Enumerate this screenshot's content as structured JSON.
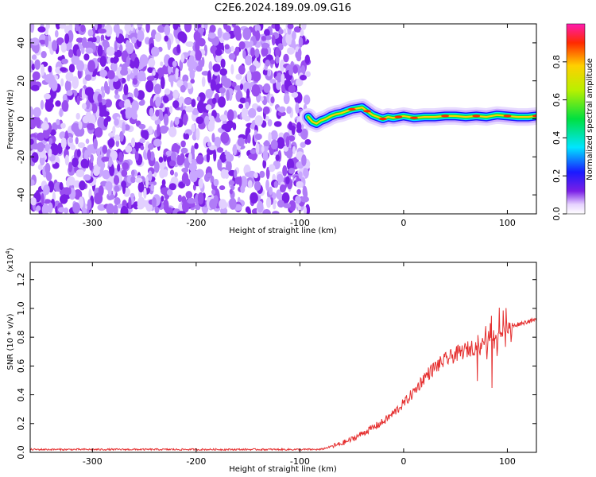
{
  "title": "C2E6.2024.189.09.09.G16",
  "colors": {
    "snr_line": "#e53030",
    "noise": "#7a1fe6",
    "axis": "#000000"
  },
  "chart_data": [
    {
      "type": "heatmap",
      "name": "spectrogram",
      "xlabel": "Height of straight line (km)",
      "ylabel": "Frequency (Hz)",
      "xlim": [
        -360,
        128
      ],
      "ylim": [
        -50,
        50
      ],
      "xticks": [
        "-300",
        "-200",
        "-100",
        "0",
        "100"
      ],
      "yticks": [
        "-40",
        "-20",
        "0",
        "20",
        "40"
      ],
      "noise_region_x": [
        -360,
        -92
      ],
      "signal_track": {
        "x": [
          -92,
          -88,
          -84,
          -80,
          -75,
          -70,
          -65,
          -60,
          -55,
          -50,
          -45,
          -40,
          -35,
          -30,
          -25,
          -20,
          -15,
          -10,
          -5,
          0,
          5,
          10,
          20,
          30,
          40,
          50,
          60,
          70,
          80,
          90,
          100,
          110,
          120,
          128
        ],
        "y": [
          1,
          -1.5,
          -2.5,
          -1,
          0,
          1.5,
          2.5,
          3,
          4,
          5,
          5.5,
          6,
          4,
          2,
          1,
          0,
          1,
          0.5,
          1,
          1.5,
          1,
          0.5,
          1,
          1,
          1.5,
          1.5,
          1,
          1.5,
          1,
          2,
          1.5,
          1,
          1,
          1.5
        ]
      },
      "colorbar": {
        "label": "Normalized spectral amplitude",
        "ticks": [
          "0.0",
          "0.2",
          "0.4",
          "0.6",
          "0.8"
        ],
        "range": [
          0,
          1
        ]
      }
    },
    {
      "type": "line",
      "name": "snr",
      "xlabel": "Height of straight line (km)",
      "ylabel": "SNR (10 * v/v)",
      "yscale_label": "(x10",
      "yscale_exp": "4",
      "yscale_close": ")",
      "xlim": [
        -360,
        128
      ],
      "ylim": [
        0,
        1.32
      ],
      "xticks": [
        "-300",
        "-200",
        "-100",
        "0",
        "100"
      ],
      "yticks": [
        "0.0",
        "0.2",
        "0.4",
        "0.6",
        "0.8",
        "1.0",
        "1.2"
      ],
      "series": [
        {
          "x": [
            -360,
            -300,
            -200,
            -100,
            -80,
            -70,
            -60,
            -50,
            -40,
            -30,
            -20,
            -10,
            0,
            10,
            20,
            30,
            40,
            50,
            60,
            70,
            80,
            90,
            100,
            110,
            120,
            128
          ],
          "y": [
            0.02,
            0.02,
            0.02,
            0.02,
            0.02,
            0.04,
            0.06,
            0.09,
            0.13,
            0.17,
            0.21,
            0.27,
            0.34,
            0.42,
            0.52,
            0.59,
            0.64,
            0.68,
            0.71,
            0.74,
            0.78,
            0.82,
            0.86,
            0.89,
            0.91,
            0.92
          ]
        }
      ]
    }
  ]
}
